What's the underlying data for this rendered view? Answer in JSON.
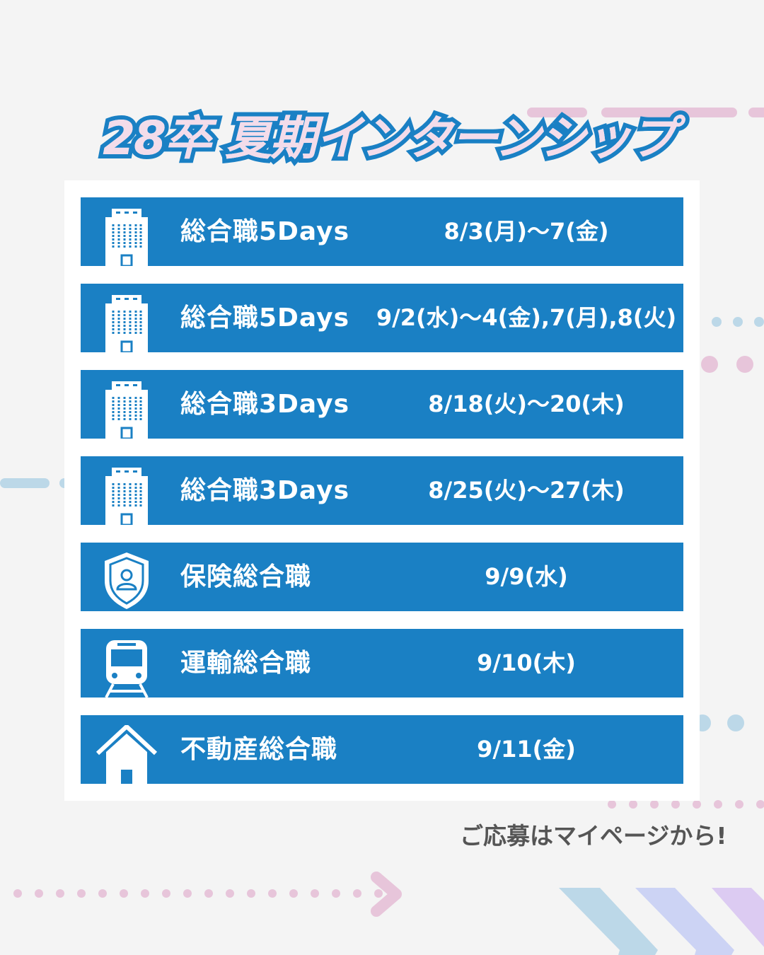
{
  "title": {
    "part1": "28卒",
    "part2": "夏期インターンシップ"
  },
  "rows": [
    {
      "icon": "building-icon",
      "name": "総合職5Days",
      "date": "8/3(月)〜7(金)"
    },
    {
      "icon": "building-icon",
      "name": "総合職5Days",
      "date": "9/2(水)〜4(金),7(月),8(火)"
    },
    {
      "icon": "building-icon",
      "name": "総合職3Days",
      "date": "8/18(火)〜20(木)"
    },
    {
      "icon": "building-icon",
      "name": "総合職3Days",
      "date": "8/25(火)〜27(木)"
    },
    {
      "icon": "shield-user-icon",
      "name": "保険総合職",
      "date": "9/9(水)"
    },
    {
      "icon": "train-icon",
      "name": "運輸総合職",
      "date": "9/10(木)"
    },
    {
      "icon": "house-icon",
      "name": "不動産総合職",
      "date": "9/11(金)"
    }
  ],
  "footer": "ご応募はマイページから!",
  "colors": {
    "accent": "#1a80c4",
    "background": "#f4f4f4",
    "pink": "#e7c5da",
    "title_fill": "#f3dcea"
  }
}
